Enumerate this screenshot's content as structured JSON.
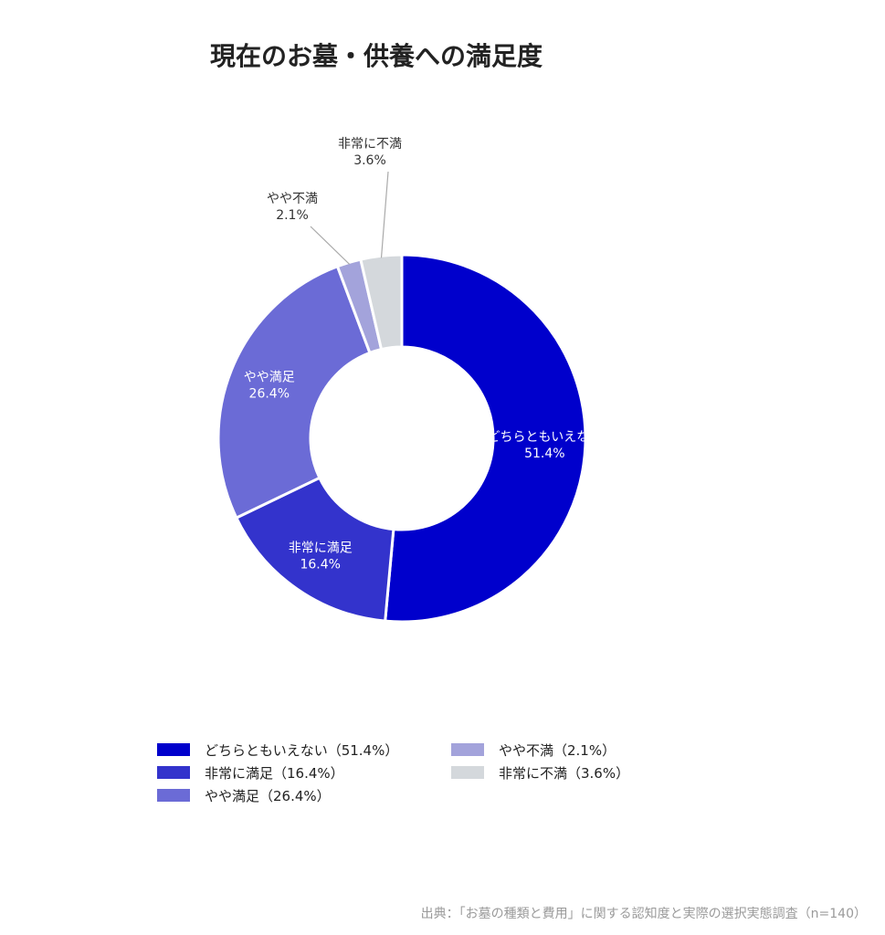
{
  "chart_data": {
    "type": "pie",
    "title": "現在のお墓・供養への満足度",
    "slices": [
      {
        "label": "どちらともいえない",
        "value": 51.4,
        "value_text": "51.4%",
        "legend": "どちらともいえない（51.4%）",
        "color": "#0000cc",
        "label_color": "#ffffff"
      },
      {
        "label": "非常に満足",
        "value": 16.4,
        "value_text": "16.4%",
        "legend": "非常に満足（16.4%）",
        "color": "#3333cc",
        "label_color": "#ffffff"
      },
      {
        "label": "やや満足",
        "value": 26.4,
        "value_text": "26.4%",
        "legend": "やや満足（26.4%）",
        "color": "#6b6bd6",
        "label_color": "#ffffff"
      },
      {
        "label": "やや不満",
        "value": 2.1,
        "value_text": "2.1%",
        "legend": "やや不満（2.1%）",
        "color": "#a3a3db",
        "label_color": "#333333"
      },
      {
        "label": "非常に不満",
        "value": 3.6,
        "value_text": "3.6%",
        "legend": "非常に不満（3.6%）",
        "color": "#d4d8dc",
        "label_color": "#333333"
      }
    ],
    "donut": true,
    "legend_position": "bottom"
  },
  "source": "出典：「お墓の種類と費用」に関する認知度と実際の選択実態調査（n=140）"
}
